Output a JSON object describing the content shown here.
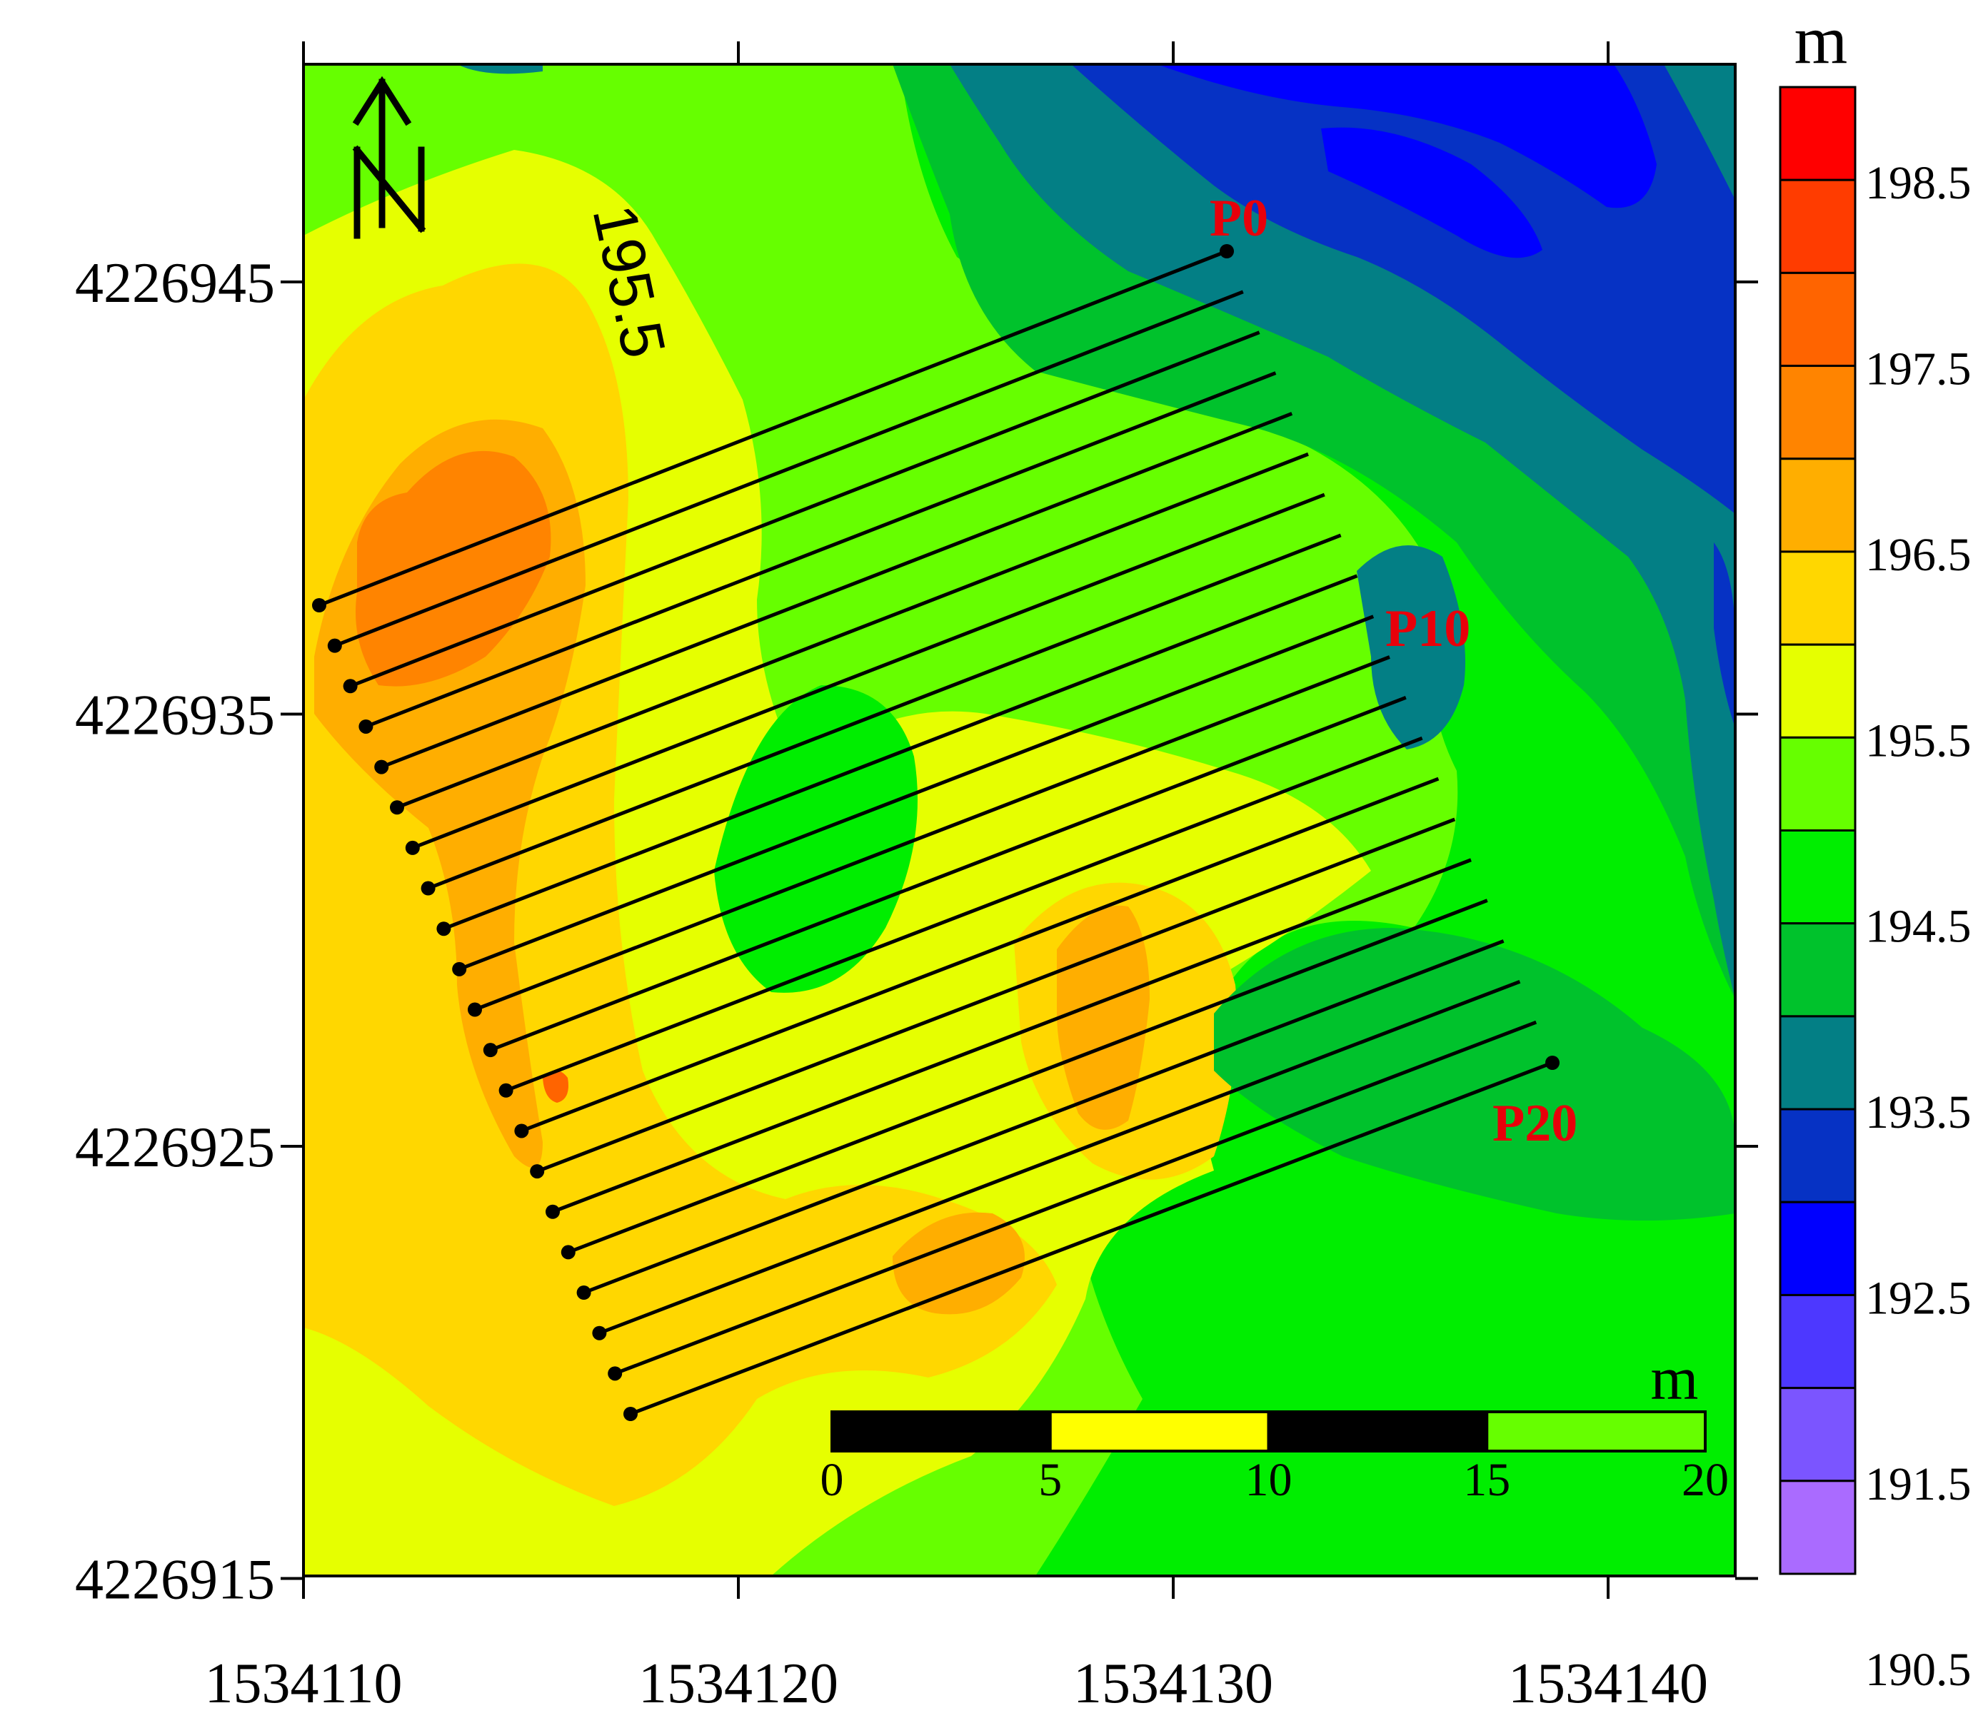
{
  "map": {
    "unit_label": "m",
    "contour_label": "195.5",
    "north_arrow_letter": "N",
    "x_axis": {
      "ticks": [
        {
          "value": 1534110,
          "label": "1534110"
        },
        {
          "value": 1534120,
          "label": "1534120"
        },
        {
          "value": 1534130,
          "label": "1534130"
        },
        {
          "value": 1534140,
          "label": "1534140"
        }
      ]
    },
    "y_axis": {
      "ticks": [
        {
          "value": 4226945,
          "label": "4226945"
        },
        {
          "value": 4226935,
          "label": "4226935"
        },
        {
          "value": 4226925,
          "label": "4226925"
        },
        {
          "value": 4226915,
          "label": "4226915"
        }
      ]
    },
    "profile_labels": [
      {
        "text": "P0",
        "color": "#e8000a"
      },
      {
        "text": "P10",
        "color": "#e8000a"
      },
      {
        "text": "P20",
        "color": "#e8000a"
      }
    ],
    "profile_count": 21,
    "scale_bar": {
      "unit": "m",
      "ticks": [
        "0",
        "5",
        "10",
        "15",
        "20"
      ],
      "colors": [
        "#000000",
        "#ffff00",
        "#66ff00",
        "#000000",
        "#66ff00"
      ]
    }
  },
  "colorbar": {
    "unit_label": "m",
    "labels": [
      "198.5",
      "197.5",
      "196.5",
      "195.5",
      "194.5",
      "193.5",
      "192.5",
      "191.5",
      "190.5"
    ],
    "colors": [
      "#ff0000",
      "#ff3c00",
      "#ff6400",
      "#ff8400",
      "#ffae00",
      "#ffd700",
      "#e6ff00",
      "#66ff00",
      "#00ee00",
      "#00c22c",
      "#037f85",
      "#0632c4",
      "#0000ff",
      "#4d38ff",
      "#7b55ff",
      "#aa6bff"
    ]
  }
}
